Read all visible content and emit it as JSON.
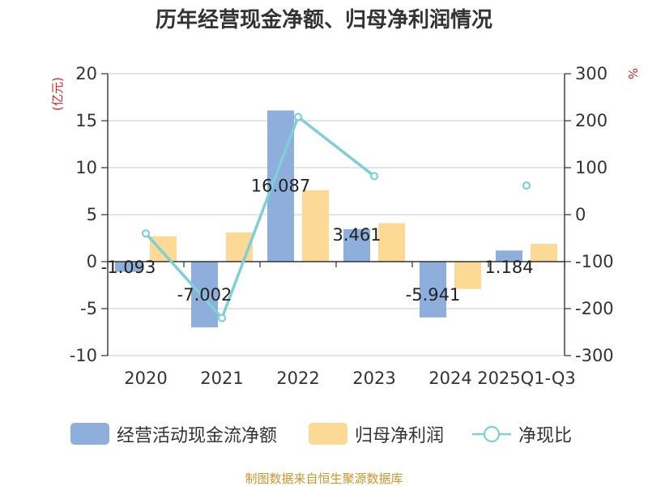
{
  "chart_data": {
    "type": "bar",
    "title": "历年经营现金净额、归母净利润情况",
    "categories": [
      "2020",
      "2021",
      "2022",
      "2023",
      "2024",
      "2025Q1-Q3"
    ],
    "left_axis_unit": "(亿元)",
    "right_axis_unit": "%",
    "ylim_left": [
      -10,
      20
    ],
    "yticks_left": [
      -10,
      -5,
      0,
      5,
      10,
      15,
      20
    ],
    "ylim_right": [
      -300,
      300
    ],
    "yticks_right": [
      -300,
      -200,
      -100,
      0,
      100,
      200,
      300
    ],
    "grid": true,
    "legend_position": "bottom",
    "series": [
      {
        "name": "经营活动现金流净额",
        "type": "bar",
        "axis": "left",
        "color": "#8eaedb",
        "values": [
          -1.093,
          -7.002,
          16.087,
          3.461,
          -5.941,
          1.184
        ],
        "labels": [
          "-1.093",
          "-7.002",
          "16.087",
          "3.461",
          "-5.941",
          "1.184"
        ]
      },
      {
        "name": "归母净利润",
        "type": "bar",
        "axis": "left",
        "color": "#fdd996",
        "values": [
          2.7,
          3.1,
          7.6,
          4.1,
          -2.9,
          1.9
        ]
      },
      {
        "name": "净现比",
        "type": "line",
        "axis": "right",
        "color": "#7fcfd6",
        "values": [
          -40,
          -220,
          208,
          82,
          null,
          62
        ]
      }
    ],
    "source": "制图数据来自恒生聚源数据库"
  }
}
